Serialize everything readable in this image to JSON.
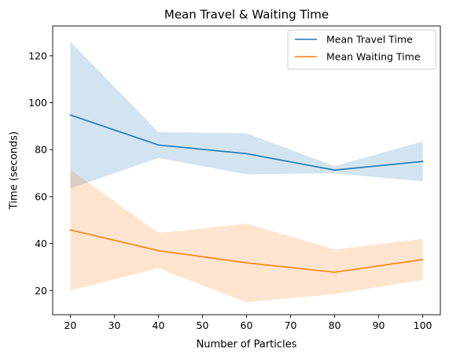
{
  "chart_data": {
    "type": "line",
    "title": "Mean Travel & Waiting Time",
    "xlabel": "Number of Particles",
    "ylabel": "Time (seconds)",
    "x": [
      20,
      40,
      60,
      80,
      100
    ],
    "xlim": [
      16,
      104
    ],
    "ylim": [
      9.7,
      132.7
    ],
    "xticks": [
      20,
      30,
      40,
      50,
      60,
      70,
      80,
      90,
      100
    ],
    "yticks": [
      20,
      40,
      60,
      80,
      100,
      120
    ],
    "grid": false,
    "legend_position": "top-right",
    "series": [
      {
        "name": "Mean Travel Time",
        "color": "#1f77b4",
        "values": [
          94.8,
          82.0,
          78.3,
          71.3,
          75.0
        ],
        "band_upper": [
          126.0,
          87.5,
          87.0,
          73.0,
          83.5
        ],
        "band_lower": [
          63.5,
          76.5,
          69.5,
          70.0,
          66.5
        ],
        "band_color": "#1f77b4"
      },
      {
        "name": "Mean Waiting Time",
        "color": "#ff7f0e",
        "values": [
          45.8,
          37.0,
          31.8,
          27.8,
          33.2
        ],
        "band_upper": [
          71.5,
          44.5,
          48.5,
          37.5,
          42.0
        ],
        "band_lower": [
          20.0,
          29.5,
          15.0,
          18.5,
          24.5
        ],
        "band_color": "#ff7f0e"
      }
    ]
  }
}
